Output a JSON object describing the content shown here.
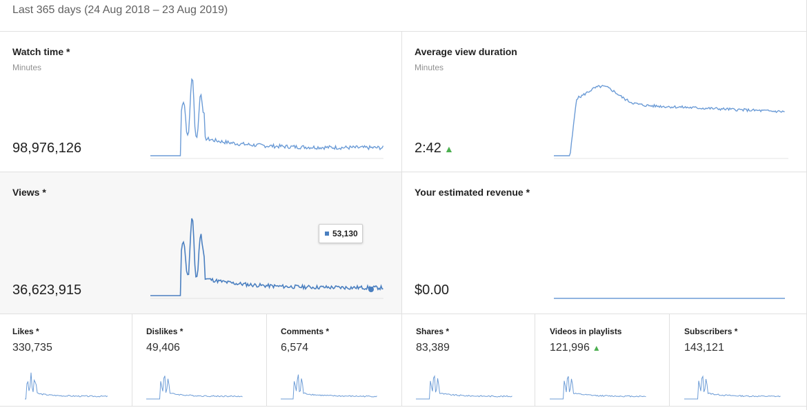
{
  "period": {
    "label": "Last 365 days (24 Aug 2018 – 23 Aug 2019)"
  },
  "colors": {
    "line": "#6b9bd6",
    "up_arrow": "#4caf50",
    "highlight_bg": "#f7f7f7"
  },
  "cards": [
    {
      "id": "watch-time",
      "title": "Watch time *",
      "subtitle": "Minutes",
      "value": "98,976,126",
      "trend": ""
    },
    {
      "id": "avg-view-duration",
      "title": "Average view duration",
      "subtitle": "Minutes",
      "value": "2:42",
      "trend": "up"
    },
    {
      "id": "views",
      "title": "Views *",
      "subtitle": "",
      "value": "36,623,915",
      "trend": "",
      "selected": true,
      "tooltip": "53,130"
    },
    {
      "id": "revenue",
      "title": "Your estimated revenue *",
      "subtitle": "",
      "value": "$0.00",
      "trend": ""
    }
  ],
  "small_cards": [
    {
      "id": "likes",
      "title": "Likes *",
      "value": "330,735",
      "trend": ""
    },
    {
      "id": "dislikes",
      "title": "Dislikes *",
      "value": "49,406",
      "trend": ""
    },
    {
      "id": "comments",
      "title": "Comments *",
      "value": "6,574",
      "trend": ""
    },
    {
      "id": "shares",
      "title": "Shares *",
      "value": "83,389",
      "trend": ""
    },
    {
      "id": "videos-in-playlists",
      "title": "Videos in playlists",
      "value": "121,996",
      "trend": "up"
    },
    {
      "id": "subscribers",
      "title": "Subscribers *",
      "value": "143,121",
      "trend": ""
    }
  ],
  "up_arrow_glyph": "▲"
}
